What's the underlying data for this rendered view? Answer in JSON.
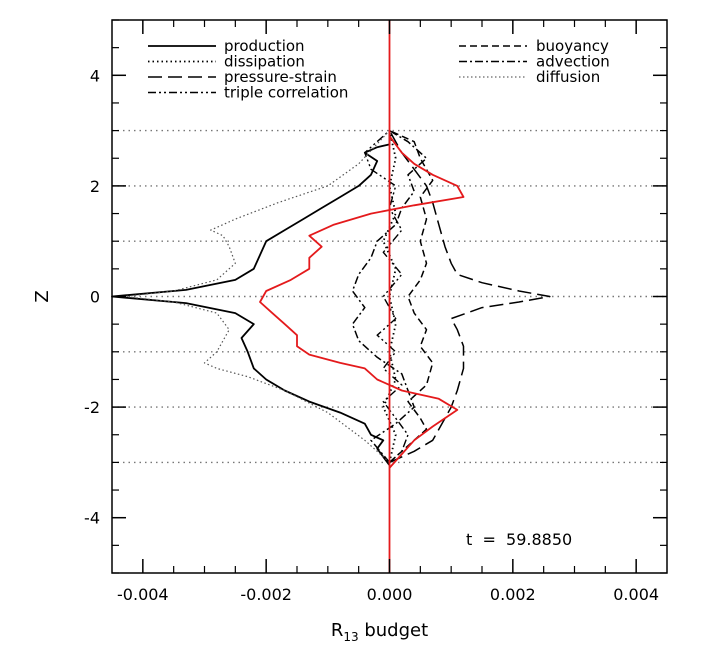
{
  "chart_data": {
    "type": "line",
    "title": "",
    "xlabel": "R",
    "xlabel_sub": "13",
    "xlabel_suffix": " budget",
    "ylabel": "Z",
    "xlim": [
      -0.0045,
      0.0045
    ],
    "ylim": [
      -5,
      5
    ],
    "x_ticks": [
      -0.004,
      -0.002,
      0.0,
      0.002,
      0.004
    ],
    "x_tick_labels": [
      "-0.004",
      "-0.002",
      "0.000",
      "0.002",
      "0.004"
    ],
    "y_ticks": [
      -4,
      -2,
      0,
      2,
      4
    ],
    "y_tick_labels": [
      "-4",
      "-2",
      "0",
      "2",
      "4"
    ],
    "gridlines_y": [
      -3,
      -2,
      -1,
      0,
      1,
      2,
      3
    ],
    "annotation": "t  =  59.8850",
    "legend": {
      "left": [
        {
          "name": "production",
          "style": "solid"
        },
        {
          "name": "dissipation",
          "style": "dotted"
        },
        {
          "name": "pressure-strain",
          "style": "longdash"
        },
        {
          "name": "triple correlation",
          "style": "dashdotdot"
        }
      ],
      "right": [
        {
          "name": "buoyancy",
          "style": "dashed"
        },
        {
          "name": "advection",
          "style": "dashdot"
        },
        {
          "name": "diffusion",
          "style": "dotted-gray"
        }
      ]
    },
    "series": [
      {
        "name": "production",
        "style": "solid",
        "color": "#000000",
        "points": [
          [
            0,
            -3.05
          ],
          [
            -0.0001,
            -2.9
          ],
          [
            -0.0002,
            -2.75
          ],
          [
            -0.0001,
            -2.6
          ],
          [
            -0.0003,
            -2.5
          ],
          [
            -0.0004,
            -2.3
          ],
          [
            -0.0008,
            -2.1
          ],
          [
            -0.0013,
            -1.9
          ],
          [
            -0.0017,
            -1.7
          ],
          [
            -0.002,
            -1.5
          ],
          [
            -0.0022,
            -1.3
          ],
          [
            -0.0023,
            -1.0
          ],
          [
            -0.0024,
            -0.75
          ],
          [
            -0.0022,
            -0.5
          ],
          [
            -0.0025,
            -0.3
          ],
          [
            -0.0033,
            -0.12
          ],
          [
            -0.0045,
            0.0
          ],
          [
            -0.0033,
            0.12
          ],
          [
            -0.0025,
            0.3
          ],
          [
            -0.0022,
            0.5
          ],
          [
            -0.0021,
            0.75
          ],
          [
            -0.002,
            1.0
          ],
          [
            -0.0017,
            1.2
          ],
          [
            -0.0014,
            1.4
          ],
          [
            -0.0011,
            1.6
          ],
          [
            -0.0008,
            1.8
          ],
          [
            -0.0005,
            2.0
          ],
          [
            -0.0003,
            2.2
          ],
          [
            -0.0002,
            2.45
          ],
          [
            -0.0004,
            2.6
          ],
          [
            -0.0002,
            2.7
          ],
          [
            0,
            2.75
          ],
          [
            0,
            3.0
          ]
        ]
      },
      {
        "name": "dissipation",
        "style": "dotted",
        "color": "#000000",
        "points": [
          [
            0,
            -3.0
          ],
          [
            0.0001,
            -2.5
          ],
          [
            -0.0001,
            -2.0
          ],
          [
            0.0001,
            -1.5
          ],
          [
            0,
            -1.0
          ],
          [
            0.0001,
            -0.5
          ],
          [
            0,
            0
          ],
          [
            0.0001,
            0.5
          ],
          [
            -0.0001,
            1.0
          ],
          [
            0.0001,
            1.5
          ],
          [
            0,
            2.0
          ],
          [
            0.0001,
            2.5
          ],
          [
            0,
            3.0
          ]
        ]
      },
      {
        "name": "pressure-strain",
        "style": "longdash",
        "color": "#000000",
        "points": [
          [
            0,
            -3.0
          ],
          [
            0.0004,
            -2.8
          ],
          [
            0.0007,
            -2.6
          ],
          [
            0.0009,
            -2.2
          ],
          [
            0.001,
            -2.0
          ],
          [
            0.0011,
            -1.7
          ],
          [
            0.0012,
            -1.3
          ],
          [
            0.0012,
            -0.9
          ],
          [
            0.0011,
            -0.6
          ],
          [
            0.001,
            -0.4
          ],
          [
            0.0015,
            -0.2
          ],
          [
            0.0021,
            -0.1
          ],
          [
            0.0026,
            0.0
          ],
          [
            0.0021,
            0.1
          ],
          [
            0.0015,
            0.25
          ],
          [
            0.0011,
            0.4
          ],
          [
            0.001,
            0.6
          ],
          [
            0.0009,
            0.9
          ],
          [
            0.0008,
            1.3
          ],
          [
            0.0007,
            1.7
          ],
          [
            0.0006,
            2.0
          ],
          [
            0.0004,
            2.3
          ],
          [
            0.0002,
            2.6
          ],
          [
            0,
            3.0
          ]
        ]
      },
      {
        "name": "buoyancy",
        "style": "dashed",
        "color": "#000000",
        "points": [
          [
            0,
            -3.0
          ],
          [
            0.0003,
            -2.7
          ],
          [
            0.0006,
            -2.4
          ],
          [
            0.0005,
            -2.2
          ],
          [
            0.0003,
            -1.9
          ],
          [
            0.0006,
            -1.6
          ],
          [
            0.0007,
            -1.2
          ],
          [
            0.0005,
            -0.9
          ],
          [
            0.0006,
            -0.6
          ],
          [
            0.0004,
            -0.3
          ],
          [
            0.0003,
            0
          ],
          [
            0.0005,
            0.3
          ],
          [
            0.0006,
            0.6
          ],
          [
            0.0005,
            1.0
          ],
          [
            0.0006,
            1.4
          ],
          [
            0.0005,
            1.8
          ],
          [
            0.0007,
            2.1
          ],
          [
            0.0005,
            2.5
          ],
          [
            0.0004,
            2.8
          ],
          [
            0,
            3.0
          ]
        ]
      },
      {
        "name": "advection",
        "style": "dashdot",
        "color": "#000000",
        "points": [
          [
            0,
            -3.0
          ],
          [
            -0.0003,
            -2.6
          ],
          [
            0.0001,
            -2.3
          ],
          [
            0.0004,
            -2.0
          ],
          [
            0.0003,
            -1.7
          ],
          [
            0.0002,
            -1.4
          ],
          [
            -0.0002,
            -1.1
          ],
          [
            -0.0005,
            -0.8
          ],
          [
            -0.0006,
            -0.5
          ],
          [
            -0.0004,
            -0.2
          ],
          [
            -0.0006,
            0.1
          ],
          [
            -0.0005,
            0.4
          ],
          [
            -0.0003,
            0.7
          ],
          [
            -0.0002,
            1.0
          ],
          [
            0.0001,
            1.3
          ],
          [
            0.0002,
            1.6
          ],
          [
            0.0004,
            1.9
          ],
          [
            0.0003,
            2.2
          ],
          [
            0.0006,
            2.5
          ],
          [
            0.0003,
            2.8
          ],
          [
            0,
            3.0
          ]
        ]
      },
      {
        "name": "triple correlation",
        "style": "dashdotdot",
        "color": "#000000",
        "points": [
          [
            0,
            -3.0
          ],
          [
            0.0002,
            -2.8
          ],
          [
            0.0003,
            -2.5
          ],
          [
            0.0001,
            -2.2
          ],
          [
            -0.0001,
            -1.9
          ],
          [
            0.0002,
            -1.6
          ],
          [
            -0.0001,
            -1.3
          ],
          [
            0.0001,
            -1.0
          ],
          [
            -0.0002,
            -0.7
          ],
          [
            0.0001,
            -0.4
          ],
          [
            -0.0001,
            0
          ],
          [
            0.0002,
            0.4
          ],
          [
            -0.0001,
            0.8
          ],
          [
            0.0002,
            1.2
          ],
          [
            0,
            1.6
          ],
          [
            0.0001,
            2.0
          ],
          [
            -0.0003,
            2.3
          ],
          [
            -0.0004,
            2.6
          ],
          [
            -0.0001,
            2.9
          ],
          [
            0,
            3.0
          ]
        ]
      },
      {
        "name": "diffusion",
        "style": "dotted-gray",
        "color": "#555555",
        "points": [
          [
            0,
            -3.0
          ],
          [
            -0.0004,
            -2.6
          ],
          [
            -0.001,
            -2.1
          ],
          [
            -0.0017,
            -1.7
          ],
          [
            -0.0023,
            -1.45
          ],
          [
            -0.0028,
            -1.3
          ],
          [
            -0.003,
            -1.2
          ],
          [
            -0.0028,
            -1.0
          ],
          [
            -0.0026,
            -0.6
          ],
          [
            -0.0028,
            -0.3
          ],
          [
            -0.0035,
            -0.1
          ],
          [
            -0.0043,
            0.0
          ],
          [
            -0.0035,
            0.1
          ],
          [
            -0.0028,
            0.3
          ],
          [
            -0.0025,
            0.6
          ],
          [
            -0.0026,
            0.9
          ],
          [
            -0.0027,
            1.1
          ],
          [
            -0.0029,
            1.2
          ],
          [
            -0.0025,
            1.4
          ],
          [
            -0.0018,
            1.7
          ],
          [
            -0.001,
            2.0
          ],
          [
            -0.0005,
            2.4
          ],
          [
            0,
            3.0
          ]
        ]
      },
      {
        "name": "",
        "style": "solid-red",
        "color": "#e41a1c",
        "points": [
          [
            0,
            -3.1
          ],
          [
            0.0002,
            -2.85
          ],
          [
            0.0004,
            -2.6
          ],
          [
            0.0007,
            -2.35
          ],
          [
            0.0011,
            -2.05
          ],
          [
            0.0008,
            -1.85
          ],
          [
            0.0002,
            -1.7
          ],
          [
            -0.0002,
            -1.5
          ],
          [
            -0.0004,
            -1.3
          ],
          [
            -0.0008,
            -1.2
          ],
          [
            -0.0013,
            -1.05
          ],
          [
            -0.0015,
            -0.9
          ],
          [
            -0.0015,
            -0.7
          ],
          [
            -0.0017,
            -0.5
          ],
          [
            -0.0019,
            -0.3
          ],
          [
            -0.0021,
            -0.1
          ],
          [
            -0.002,
            0.1
          ],
          [
            -0.0016,
            0.3
          ],
          [
            -0.0013,
            0.5
          ],
          [
            -0.0013,
            0.7
          ],
          [
            -0.0011,
            0.9
          ],
          [
            -0.0013,
            1.1
          ],
          [
            -0.0009,
            1.3
          ],
          [
            -0.0003,
            1.5
          ],
          [
            0.0004,
            1.65
          ],
          [
            0.0012,
            1.8
          ],
          [
            0.0011,
            2.0
          ],
          [
            0.0007,
            2.2
          ],
          [
            0.0004,
            2.4
          ],
          [
            0.0002,
            2.6
          ],
          [
            0,
            2.9
          ]
        ]
      },
      {
        "name": "",
        "style": "solid-red",
        "color": "#e41a1c",
        "points": [
          [
            0,
            -5
          ],
          [
            0,
            5
          ]
        ]
      }
    ]
  }
}
